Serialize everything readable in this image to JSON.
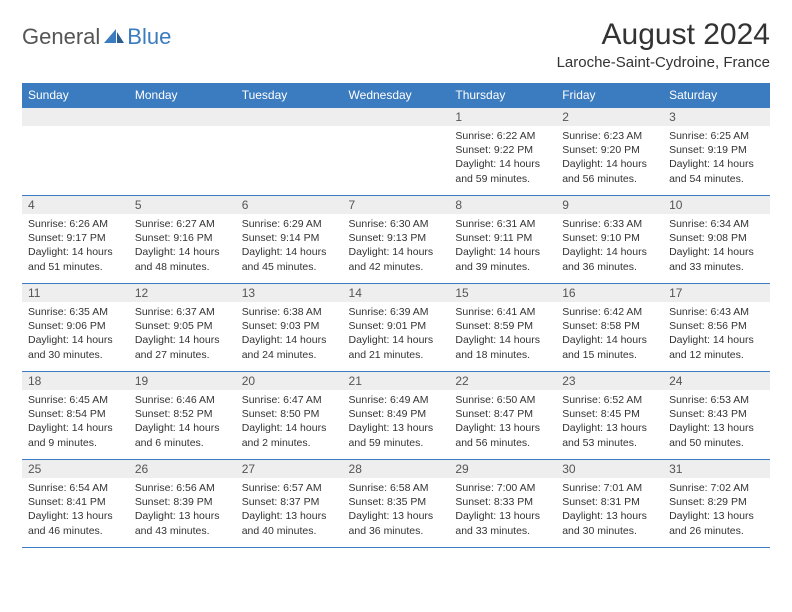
{
  "logo": {
    "general": "General",
    "blue": "Blue"
  },
  "title": "August 2024",
  "location": "Laroche-Saint-Cydroine, France",
  "colors": {
    "header_bg": "#3b7bbf",
    "header_text": "#ffffff",
    "daynum_bg": "#eeeeee",
    "border": "#3b7bbf",
    "body_text": "#333333"
  },
  "day_headers": [
    "Sunday",
    "Monday",
    "Tuesday",
    "Wednesday",
    "Thursday",
    "Friday",
    "Saturday"
  ],
  "weeks": [
    [
      null,
      null,
      null,
      null,
      {
        "n": "1",
        "sr": "Sunrise: 6:22 AM",
        "ss": "Sunset: 9:22 PM",
        "dl": "Daylight: 14 hours and 59 minutes."
      },
      {
        "n": "2",
        "sr": "Sunrise: 6:23 AM",
        "ss": "Sunset: 9:20 PM",
        "dl": "Daylight: 14 hours and 56 minutes."
      },
      {
        "n": "3",
        "sr": "Sunrise: 6:25 AM",
        "ss": "Sunset: 9:19 PM",
        "dl": "Daylight: 14 hours and 54 minutes."
      }
    ],
    [
      {
        "n": "4",
        "sr": "Sunrise: 6:26 AM",
        "ss": "Sunset: 9:17 PM",
        "dl": "Daylight: 14 hours and 51 minutes."
      },
      {
        "n": "5",
        "sr": "Sunrise: 6:27 AM",
        "ss": "Sunset: 9:16 PM",
        "dl": "Daylight: 14 hours and 48 minutes."
      },
      {
        "n": "6",
        "sr": "Sunrise: 6:29 AM",
        "ss": "Sunset: 9:14 PM",
        "dl": "Daylight: 14 hours and 45 minutes."
      },
      {
        "n": "7",
        "sr": "Sunrise: 6:30 AM",
        "ss": "Sunset: 9:13 PM",
        "dl": "Daylight: 14 hours and 42 minutes."
      },
      {
        "n": "8",
        "sr": "Sunrise: 6:31 AM",
        "ss": "Sunset: 9:11 PM",
        "dl": "Daylight: 14 hours and 39 minutes."
      },
      {
        "n": "9",
        "sr": "Sunrise: 6:33 AM",
        "ss": "Sunset: 9:10 PM",
        "dl": "Daylight: 14 hours and 36 minutes."
      },
      {
        "n": "10",
        "sr": "Sunrise: 6:34 AM",
        "ss": "Sunset: 9:08 PM",
        "dl": "Daylight: 14 hours and 33 minutes."
      }
    ],
    [
      {
        "n": "11",
        "sr": "Sunrise: 6:35 AM",
        "ss": "Sunset: 9:06 PM",
        "dl": "Daylight: 14 hours and 30 minutes."
      },
      {
        "n": "12",
        "sr": "Sunrise: 6:37 AM",
        "ss": "Sunset: 9:05 PM",
        "dl": "Daylight: 14 hours and 27 minutes."
      },
      {
        "n": "13",
        "sr": "Sunrise: 6:38 AM",
        "ss": "Sunset: 9:03 PM",
        "dl": "Daylight: 14 hours and 24 minutes."
      },
      {
        "n": "14",
        "sr": "Sunrise: 6:39 AM",
        "ss": "Sunset: 9:01 PM",
        "dl": "Daylight: 14 hours and 21 minutes."
      },
      {
        "n": "15",
        "sr": "Sunrise: 6:41 AM",
        "ss": "Sunset: 8:59 PM",
        "dl": "Daylight: 14 hours and 18 minutes."
      },
      {
        "n": "16",
        "sr": "Sunrise: 6:42 AM",
        "ss": "Sunset: 8:58 PM",
        "dl": "Daylight: 14 hours and 15 minutes."
      },
      {
        "n": "17",
        "sr": "Sunrise: 6:43 AM",
        "ss": "Sunset: 8:56 PM",
        "dl": "Daylight: 14 hours and 12 minutes."
      }
    ],
    [
      {
        "n": "18",
        "sr": "Sunrise: 6:45 AM",
        "ss": "Sunset: 8:54 PM",
        "dl": "Daylight: 14 hours and 9 minutes."
      },
      {
        "n": "19",
        "sr": "Sunrise: 6:46 AM",
        "ss": "Sunset: 8:52 PM",
        "dl": "Daylight: 14 hours and 6 minutes."
      },
      {
        "n": "20",
        "sr": "Sunrise: 6:47 AM",
        "ss": "Sunset: 8:50 PM",
        "dl": "Daylight: 14 hours and 2 minutes."
      },
      {
        "n": "21",
        "sr": "Sunrise: 6:49 AM",
        "ss": "Sunset: 8:49 PM",
        "dl": "Daylight: 13 hours and 59 minutes."
      },
      {
        "n": "22",
        "sr": "Sunrise: 6:50 AM",
        "ss": "Sunset: 8:47 PM",
        "dl": "Daylight: 13 hours and 56 minutes."
      },
      {
        "n": "23",
        "sr": "Sunrise: 6:52 AM",
        "ss": "Sunset: 8:45 PM",
        "dl": "Daylight: 13 hours and 53 minutes."
      },
      {
        "n": "24",
        "sr": "Sunrise: 6:53 AM",
        "ss": "Sunset: 8:43 PM",
        "dl": "Daylight: 13 hours and 50 minutes."
      }
    ],
    [
      {
        "n": "25",
        "sr": "Sunrise: 6:54 AM",
        "ss": "Sunset: 8:41 PM",
        "dl": "Daylight: 13 hours and 46 minutes."
      },
      {
        "n": "26",
        "sr": "Sunrise: 6:56 AM",
        "ss": "Sunset: 8:39 PM",
        "dl": "Daylight: 13 hours and 43 minutes."
      },
      {
        "n": "27",
        "sr": "Sunrise: 6:57 AM",
        "ss": "Sunset: 8:37 PM",
        "dl": "Daylight: 13 hours and 40 minutes."
      },
      {
        "n": "28",
        "sr": "Sunrise: 6:58 AM",
        "ss": "Sunset: 8:35 PM",
        "dl": "Daylight: 13 hours and 36 minutes."
      },
      {
        "n": "29",
        "sr": "Sunrise: 7:00 AM",
        "ss": "Sunset: 8:33 PM",
        "dl": "Daylight: 13 hours and 33 minutes."
      },
      {
        "n": "30",
        "sr": "Sunrise: 7:01 AM",
        "ss": "Sunset: 8:31 PM",
        "dl": "Daylight: 13 hours and 30 minutes."
      },
      {
        "n": "31",
        "sr": "Sunrise: 7:02 AM",
        "ss": "Sunset: 8:29 PM",
        "dl": "Daylight: 13 hours and 26 minutes."
      }
    ]
  ]
}
